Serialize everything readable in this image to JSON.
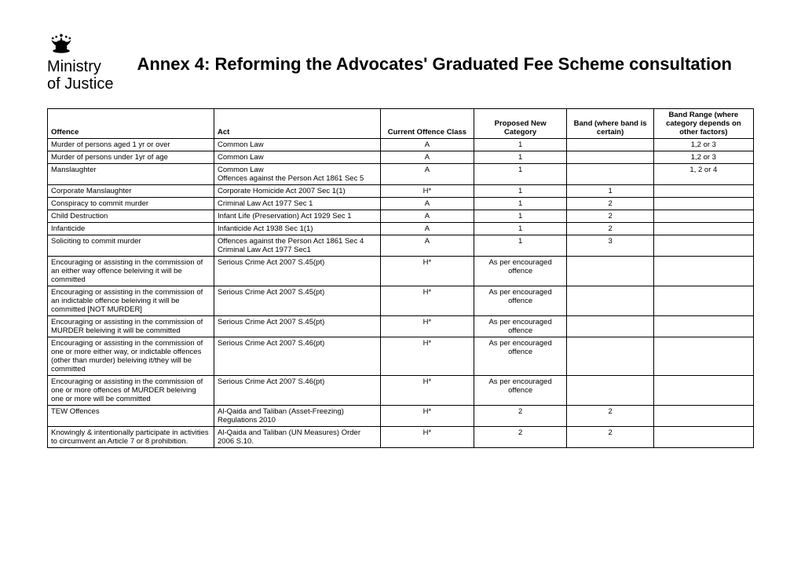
{
  "logo": {
    "line1": "Ministry",
    "line2": "of Justice"
  },
  "title": "Annex 4: Reforming the Advocates' Graduated Fee Scheme consultation",
  "columns": {
    "offence": "Offence",
    "act": "Act",
    "class": "Current Offence Class",
    "category": "Proposed New Category",
    "band": "Band (where band is certain)",
    "range": "Band Range (where category depends on other factors)"
  },
  "rows": [
    {
      "offence": "Murder of persons aged 1 yr or over",
      "act": "Common Law",
      "class": "A",
      "category": "1",
      "band": "",
      "range": "1,2 or 3"
    },
    {
      "offence": "Murder of persons under 1yr of age",
      "act": "Common Law",
      "class": "A",
      "category": "1",
      "band": "",
      "range": "1,2 or 3"
    },
    {
      "offence": "Manslaughter",
      "act": "Common Law\nOffences against the Person Act 1861 Sec 5",
      "class": "A",
      "category": "1",
      "band": "",
      "range": "1, 2 or 4"
    },
    {
      "offence": "Corporate Manslaughter",
      "act": "Corporate Homicide Act 2007 Sec 1(1)",
      "class": "H*",
      "category": "1",
      "band": "1",
      "range": ""
    },
    {
      "offence": "Conspiracy to commit murder",
      "act": "Criminal Law Act 1977 Sec 1",
      "class": "A",
      "category": "1",
      "band": "2",
      "range": ""
    },
    {
      "offence": "Child Destruction",
      "act": "Infant Life (Preservation) Act 1929 Sec 1",
      "class": "A",
      "category": "1",
      "band": "2",
      "range": ""
    },
    {
      "offence": "Infanticide",
      "act": "Infanticide Act 1938 Sec 1(1)",
      "class": "A",
      "category": "1",
      "band": "2",
      "range": ""
    },
    {
      "offence": "Soliciting to commit murder",
      "act": "Offences against the Person Act 1861 Sec 4\nCriminal Law Act 1977 Sec1",
      "class": "A",
      "category": "1",
      "band": "3",
      "range": ""
    },
    {
      "offence": "Encouraging or assisting in the commission of an either way offence beleiving it will be committed",
      "act": "Serious Crime Act 2007 S.45(pt)",
      "class": "H*",
      "category": "As per encouraged offence",
      "band": "",
      "range": ""
    },
    {
      "offence": "Encouraging or assisting in the commission of an indictable offence beleiving it will be committed [NOT MURDER]",
      "act": "Serious Crime Act 2007 S.45(pt)",
      "class": "H*",
      "category": "As per encouraged offence",
      "band": "",
      "range": ""
    },
    {
      "offence": "Encouraging or assisting in the commission of MURDER beleiving it will be committed",
      "act": "Serious Crime Act 2007 S.45(pt)",
      "class": "H*",
      "category": "As per encouraged offence",
      "band": "",
      "range": ""
    },
    {
      "offence": "Encouraging or assisting in the commission of one or more either way, or indictable offences (other than murder) beleiving it/they will be committed",
      "act": "Serious Crime Act 2007 S.46(pt)",
      "class": "H*",
      "category": "As per encouraged offence",
      "band": "",
      "range": ""
    },
    {
      "offence": "Encouraging or assisting in the commission of one or more offences of MURDER beleiving one or more will be committed",
      "act": "Serious Crime Act 2007 S.46(pt)",
      "class": "H*",
      "category": "As per encouraged offence",
      "band": "",
      "range": ""
    },
    {
      "offence": "TEW Offences",
      "act": "Al-Qaida and Taliban (Asset-Freezing) Regulations 2010",
      "class": "H*",
      "category": "2",
      "band": "2",
      "range": ""
    },
    {
      "offence": "Knowingly & intentionally participate in activities to circumvent an Article 7 or 8 prohibition.",
      "act": "Al-Qaida and Taliban (UN Measures) Order 2006 S.10.",
      "class": "H*",
      "category": "2",
      "band": "2",
      "range": ""
    }
  ]
}
